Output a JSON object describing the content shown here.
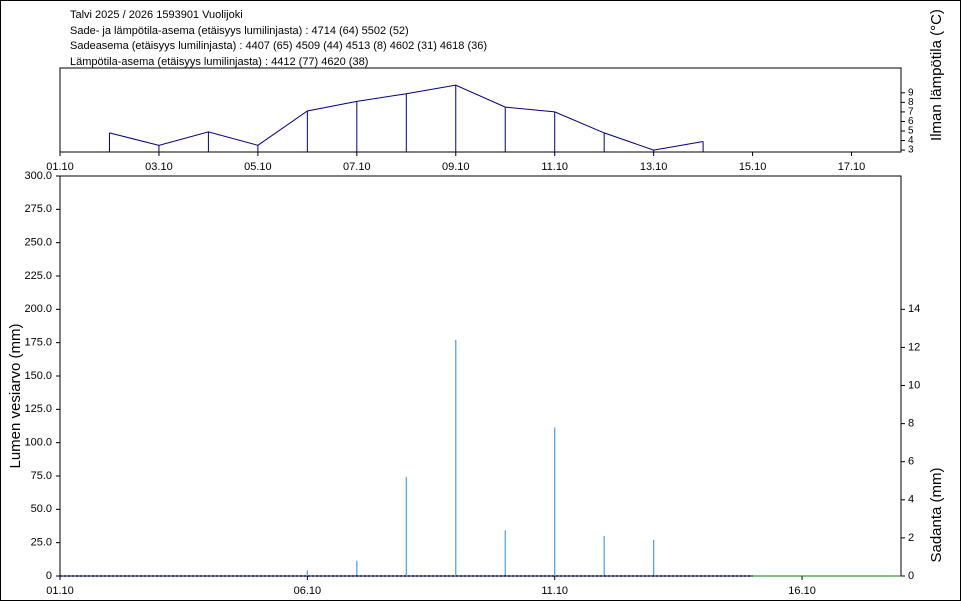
{
  "header": {
    "lines": [
      "Talvi 2025 / 2026 1593901 Vuolijoki",
      "Sade- ja lämpötila-asema (etäisyys lumilinjasta) :  4714 (64) 5502 (52)",
      "Sadeasema (etäisyys lumilinjasta) :  4407 (65) 4509 (44) 4513 (8) 4602 (31) 4618 (36)",
      "Lämpötila-asema (etäisyys lumilinjasta) :  4412 (77) 4620 (38)"
    ]
  },
  "chart_data": [
    {
      "type": "line",
      "y2_label": "Ilman lämpötila (°C)",
      "xlim": [
        1,
        18
      ],
      "xticks": [
        {
          "value": 1,
          "label": "01.10"
        },
        {
          "value": 3,
          "label": "03.10"
        },
        {
          "value": 5,
          "label": "05.10"
        },
        {
          "value": 7,
          "label": "07.10"
        },
        {
          "value": 9,
          "label": "09.10"
        },
        {
          "value": 11,
          "label": "11.10"
        },
        {
          "value": 13,
          "label": "13.10"
        },
        {
          "value": 15,
          "label": "15.10"
        },
        {
          "value": 17,
          "label": "17.10"
        }
      ],
      "y2lim": [
        2.8,
        11.6
      ],
      "y2ticks": [
        3,
        4,
        5,
        6,
        7,
        8,
        9
      ],
      "series": [
        {
          "color": "#000080",
          "axis": "y2",
          "droplines": true,
          "x": [
            2,
            3,
            4,
            5,
            6,
            7,
            8,
            9,
            10,
            11,
            12,
            13,
            14
          ],
          "values": [
            4.8,
            3.5,
            4.9,
            3.5,
            7.1,
            8.1,
            8.9,
            9.8,
            7.5,
            7.0,
            4.8,
            3.0,
            3.9
          ]
        }
      ]
    },
    {
      "type": "line",
      "ylabel": "Lumen vesiarvo (mm)",
      "y2_label": "Sadanta (mm)",
      "xlim": [
        1,
        18
      ],
      "xticks": [
        {
          "value": 1,
          "label": "01.10"
        },
        {
          "value": 6,
          "label": "06.10"
        },
        {
          "value": 11,
          "label": "11.10"
        },
        {
          "value": 16,
          "label": "16.10"
        }
      ],
      "ylim": [
        0,
        300
      ],
      "yticks": [
        0,
        {
          "value": 25,
          "label": "25.0"
        },
        {
          "value": 50,
          "label": "50.0"
        },
        {
          "value": 75,
          "label": "75.0"
        },
        {
          "value": 100,
          "label": "100.0"
        },
        {
          "value": 125,
          "label": "125.0"
        },
        {
          "value": 150,
          "label": "150.0"
        },
        {
          "value": 175,
          "label": "175.0"
        },
        {
          "value": 200,
          "label": "200.0"
        },
        {
          "value": 225,
          "label": "225.0"
        },
        {
          "value": 250,
          "label": "250.0"
        },
        {
          "value": 275,
          "label": "275.0"
        },
        {
          "value": 300,
          "label": "300.0"
        }
      ],
      "y2lim": [
        0,
        21
      ],
      "y2ticks": [
        0,
        2,
        4,
        6,
        8,
        10,
        12,
        14
      ],
      "series": [
        {
          "type": "bar",
          "color": "#4a9ee0",
          "axis": "y2",
          "x": [
            6,
            7,
            8,
            9,
            10,
            11,
            12,
            13
          ],
          "values": [
            0.3,
            0.8,
            5.2,
            12.4,
            2.4,
            7.8,
            2.1,
            1.9
          ]
        },
        {
          "type": "line",
          "color": "#000080",
          "dashed": true,
          "axis": "y",
          "x": [
            1,
            3,
            5,
            7,
            9,
            11,
            13,
            15
          ],
          "values": [
            0,
            0,
            0,
            0,
            0,
            0,
            0,
            0
          ]
        },
        {
          "type": "line",
          "color": "#008000",
          "axis": "y",
          "x": [
            15,
            18
          ],
          "values": [
            0,
            0
          ]
        }
      ]
    }
  ]
}
